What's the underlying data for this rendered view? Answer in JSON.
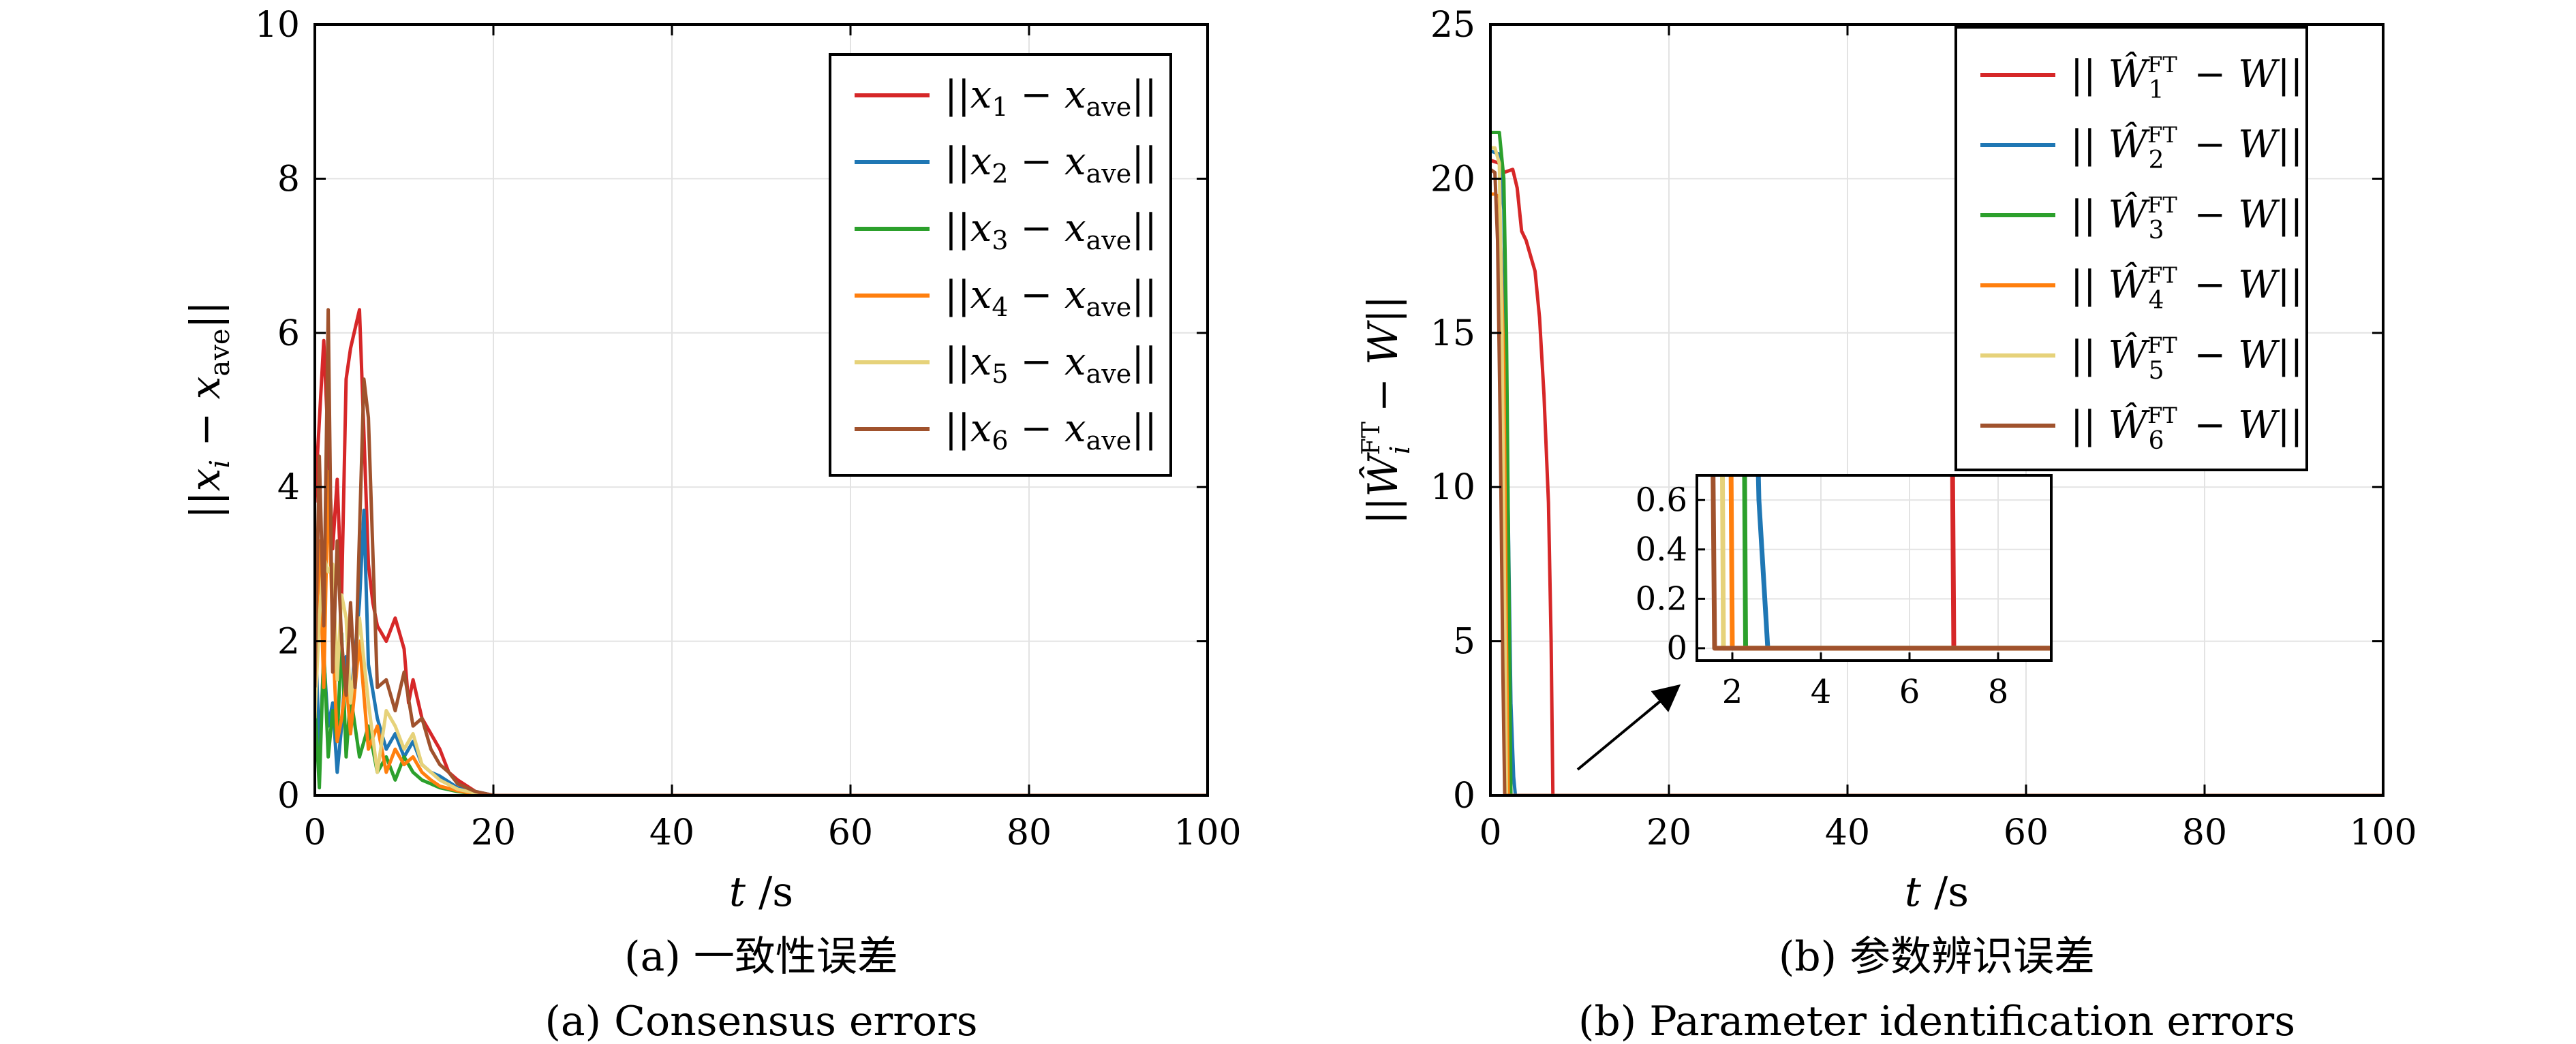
{
  "chart_data": [
    {
      "type": "line",
      "xlabel": "t /s",
      "ylabel": "||x_i − x_ave||",
      "xlim": [
        0,
        100
      ],
      "ylim": [
        0,
        10
      ],
      "xticks": [
        0,
        20,
        40,
        60,
        80,
        100
      ],
      "yticks": [
        0,
        2,
        4,
        6,
        8,
        10
      ],
      "grid": true,
      "legend_position": "top-right",
      "caption_cn": "(a) 一致性误差",
      "caption_en": "(a) Consensus errors",
      "series": [
        {
          "name": "||x1 − xave||",
          "color": "#d62728",
          "x": [
            0,
            1,
            2,
            2.5,
            3,
            3.5,
            4,
            5,
            5.5,
            6,
            6.5,
            7,
            7.5,
            8,
            9,
            10,
            10.5,
            11,
            12,
            13,
            14,
            15,
            16,
            18,
            20,
            100
          ],
          "y": [
            3.8,
            5.9,
            3.2,
            4.1,
            2.6,
            5.4,
            5.8,
            6.3,
            4.7,
            3.0,
            2.5,
            2.2,
            2.1,
            2.0,
            2.3,
            1.9,
            1.2,
            1.5,
            1.0,
            0.8,
            0.6,
            0.3,
            0.2,
            0.05,
            0,
            0
          ]
        },
        {
          "name": "||x2 − xave||",
          "color": "#1f77b4",
          "x": [
            0,
            0.5,
            1,
            1.5,
            2,
            2.5,
            3,
            3.5,
            4,
            5,
            5.5,
            6,
            7,
            8,
            9,
            10,
            11,
            12,
            13,
            14,
            16,
            18,
            20,
            100
          ],
          "y": [
            2.4,
            0.5,
            1.8,
            0.9,
            1.2,
            0.3,
            0.9,
            1.8,
            1.2,
            2.5,
            3.7,
            1.7,
            1.0,
            0.6,
            0.8,
            0.5,
            0.7,
            0.4,
            0.3,
            0.25,
            0.1,
            0.05,
            0,
            0
          ]
        },
        {
          "name": "||x3 − xave||",
          "color": "#2ca02c",
          "x": [
            0,
            0.5,
            1,
            1.5,
            2,
            2.5,
            3,
            3.5,
            4,
            5,
            6,
            7,
            8,
            9,
            10,
            11,
            12,
            13,
            14,
            16,
            18,
            20,
            100
          ],
          "y": [
            1.2,
            0.1,
            1.9,
            0.5,
            1.1,
            0.7,
            2.1,
            0.5,
            1.3,
            0.5,
            0.9,
            0.3,
            0.5,
            0.2,
            0.5,
            0.3,
            0.2,
            0.15,
            0.1,
            0.05,
            0.02,
            0,
            0
          ]
        },
        {
          "name": "||x4 − xave||",
          "color": "#ff7f0e",
          "x": [
            0,
            0.5,
            1,
            1.5,
            2,
            2.5,
            3,
            3.5,
            4,
            5,
            6,
            7,
            8,
            9,
            10,
            11,
            12,
            13,
            14,
            16,
            18,
            20,
            100
          ],
          "y": [
            1.6,
            3.3,
            1.4,
            4.2,
            2.1,
            0.7,
            1.0,
            1.5,
            0.8,
            2.0,
            0.6,
            0.9,
            0.3,
            0.6,
            0.4,
            0.5,
            0.3,
            0.2,
            0.12,
            0.06,
            0.02,
            0,
            0
          ]
        },
        {
          "name": "||x5 − xave||",
          "color": "#e6d27a",
          "x": [
            0,
            0.5,
            1,
            1.5,
            2,
            2.5,
            3,
            3.5,
            4,
            5,
            6,
            7,
            8,
            9,
            10,
            11,
            12,
            13,
            14,
            16,
            18,
            20,
            100
          ],
          "y": [
            1.0,
            2.3,
            3.1,
            2.9,
            3.0,
            1.5,
            2.6,
            2.3,
            1.2,
            2.3,
            1.2,
            0.3,
            1.1,
            0.9,
            0.6,
            0.8,
            0.4,
            0.3,
            0.2,
            0.08,
            0.03,
            0,
            0
          ]
        },
        {
          "name": "||x6 − xave||",
          "color": "#a0522d",
          "x": [
            0,
            0.5,
            1,
            1.5,
            2,
            2.5,
            3,
            3.5,
            4,
            4.5,
            5,
            5.5,
            6,
            7,
            8,
            9,
            10,
            11,
            12,
            13,
            14,
            15,
            16,
            18,
            20,
            100
          ],
          "y": [
            1.4,
            4.4,
            2.2,
            6.3,
            1.6,
            3.3,
            2.0,
            1.3,
            2.5,
            1.4,
            3.4,
            5.4,
            4.9,
            1.4,
            1.5,
            1.1,
            1.6,
            0.9,
            1.0,
            0.6,
            0.4,
            0.3,
            0.15,
            0.05,
            0,
            0
          ]
        }
      ]
    },
    {
      "type": "line",
      "xlabel": "t /s",
      "ylabel": "||Ŵ_i^FT − W||",
      "xlim": [
        0,
        100
      ],
      "ylim": [
        0,
        25
      ],
      "xticks": [
        0,
        20,
        40,
        60,
        80,
        100
      ],
      "yticks": [
        0,
        5,
        10,
        15,
        20,
        25
      ],
      "grid": true,
      "legend_position": "top-right",
      "caption_cn": "(b) 参数辨识误差",
      "caption_en": "(b) Parameter identification errors",
      "series": [
        {
          "name": "||Ŵ1FT − W||",
          "color": "#d62728",
          "x": [
            0,
            1,
            1.5,
            2.5,
            3,
            3.5,
            4,
            4.5,
            5,
            5.5,
            6,
            6.5,
            6.8,
            7,
            100
          ],
          "y": [
            20.6,
            20.5,
            20.2,
            20.3,
            19.7,
            18.3,
            18.0,
            17.5,
            17.0,
            15.5,
            13.0,
            9.5,
            5.0,
            0,
            0
          ]
        },
        {
          "name": "||Ŵ2FT − W||",
          "color": "#1f77b4",
          "x": [
            0,
            1,
            1.5,
            2,
            2.3,
            2.6,
            2.8,
            100
          ],
          "y": [
            20.9,
            20.8,
            19.0,
            9.0,
            3.0,
            0.6,
            0,
            0
          ]
        },
        {
          "name": "||Ŵ3FT − W||",
          "color": "#2ca02c",
          "x": [
            0,
            1,
            1.5,
            1.8,
            2.1,
            2.3,
            100
          ],
          "y": [
            21.5,
            21.5,
            20.0,
            15.0,
            6.0,
            0,
            0
          ]
        },
        {
          "name": "||Ŵ4FT − W||",
          "color": "#ff7f0e",
          "x": [
            0,
            0.5,
            1,
            1.5,
            1.8,
            2.0,
            100
          ],
          "y": [
            19.5,
            19.5,
            19.4,
            14.0,
            5.0,
            0,
            0
          ]
        },
        {
          "name": "||Ŵ5FT − W||",
          "color": "#e6d27a",
          "x": [
            0,
            0.5,
            1,
            1.3,
            1.6,
            1.8,
            100
          ],
          "y": [
            21.0,
            21.0,
            20.5,
            15.0,
            6.0,
            0,
            0
          ]
        },
        {
          "name": "||Ŵ6FT − W||",
          "color": "#a0522d",
          "x": [
            0,
            0.5,
            0.8,
            1.1,
            1.4,
            1.6,
            100
          ],
          "y": [
            20.3,
            20.2,
            18.0,
            12.0,
            4.0,
            0,
            0
          ]
        }
      ],
      "inset": {
        "xlim": [
          1.2,
          9.2
        ],
        "ylim": [
          -0.05,
          0.7
        ],
        "xticks": [
          2,
          4,
          6,
          8
        ],
        "yticks": [
          0,
          0.2,
          0.4,
          0.6
        ]
      }
    }
  ]
}
